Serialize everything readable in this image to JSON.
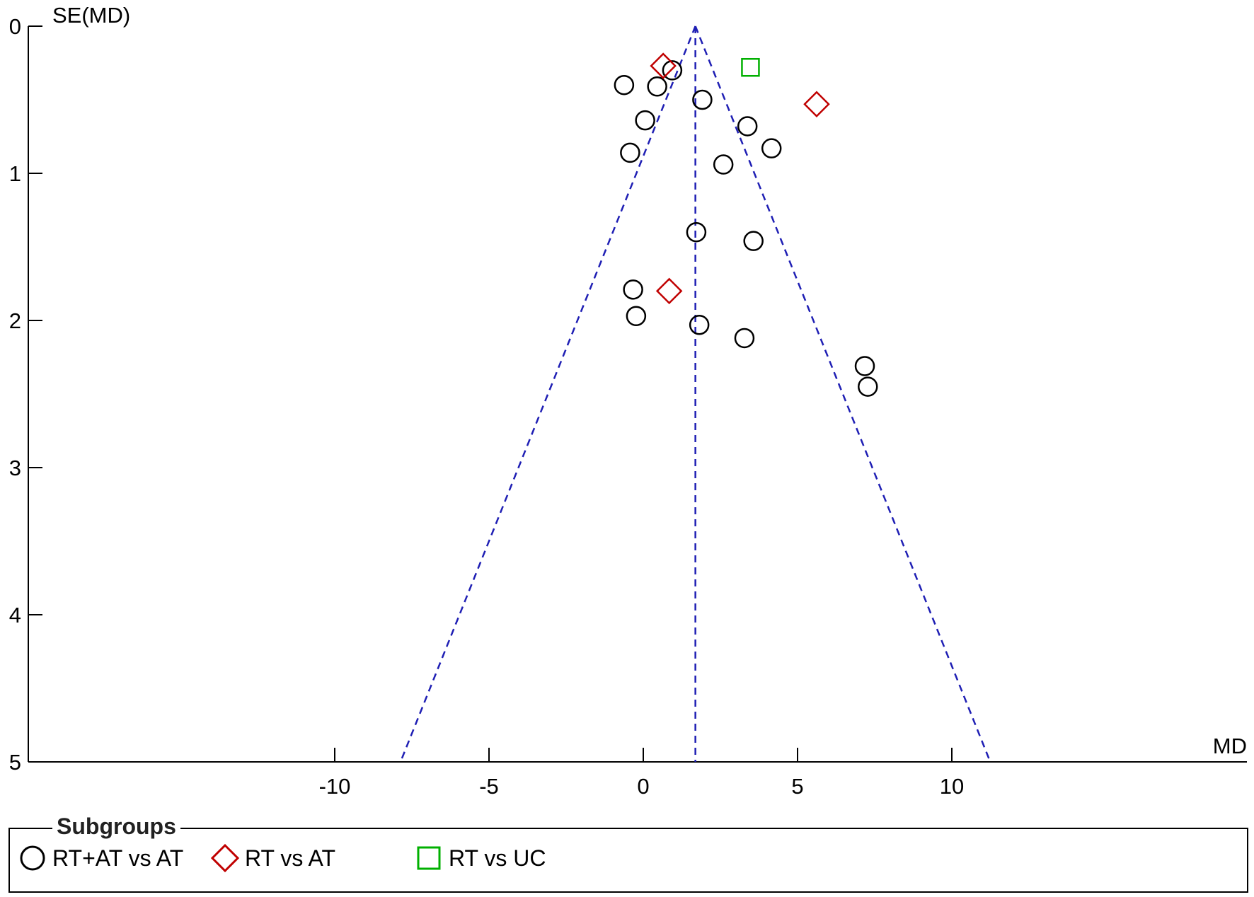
{
  "chart_data": {
    "type": "scatter",
    "title": "",
    "xlabel": "MD",
    "ylabel": "SE(MD)",
    "xticks": [
      "-10",
      "-5",
      "0",
      "5",
      "10"
    ],
    "yticks": [
      "0",
      "1",
      "2",
      "3",
      "4",
      "5"
    ],
    "xlim": [
      -20.9,
      19.6
    ],
    "ylim": [
      0,
      5
    ],
    "y_reversed": true,
    "pooled_estimate": 1.27,
    "funnel": {
      "apex": [
        1.27,
        0
      ],
      "base_left": [
        -8.53,
        5
      ],
      "base_right": [
        11.07,
        5
      ]
    },
    "grid": false,
    "legend_title": "Subgroups",
    "legend_position": "bottom",
    "series": [
      {
        "name": "RT+AT vs AT",
        "marker": "circle",
        "color": "#000000",
        "points": [
          {
            "x": -1.1,
            "y": 0.4
          },
          {
            "x": 0.0,
            "y": 0.41
          },
          {
            "x": 0.5,
            "y": 0.3
          },
          {
            "x": 1.5,
            "y": 0.5
          },
          {
            "x": -0.4,
            "y": 0.64
          },
          {
            "x": -0.9,
            "y": 0.86
          },
          {
            "x": 3.0,
            "y": 0.68
          },
          {
            "x": 3.8,
            "y": 0.83
          },
          {
            "x": 2.2,
            "y": 0.94
          },
          {
            "x": 1.3,
            "y": 1.4
          },
          {
            "x": 3.2,
            "y": 1.46
          },
          {
            "x": -0.8,
            "y": 1.79
          },
          {
            "x": -0.7,
            "y": 1.97
          },
          {
            "x": 1.4,
            "y": 2.03
          },
          {
            "x": 2.9,
            "y": 2.12
          },
          {
            "x": 6.9,
            "y": 2.31
          },
          {
            "x": 7.0,
            "y": 2.45
          }
        ]
      },
      {
        "name": "RT vs AT",
        "marker": "diamond",
        "color": "#c00000",
        "points": [
          {
            "x": 0.2,
            "y": 0.27
          },
          {
            "x": 5.3,
            "y": 0.53
          },
          {
            "x": 0.4,
            "y": 1.8
          }
        ]
      },
      {
        "name": "RT vs UC",
        "marker": "square",
        "color": "#00b000",
        "points": [
          {
            "x": 3.1,
            "y": 0.28
          }
        ]
      }
    ]
  }
}
